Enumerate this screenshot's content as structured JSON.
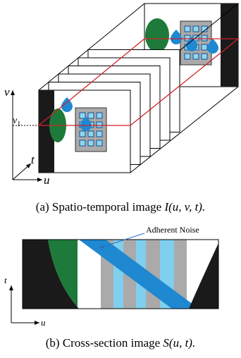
{
  "figure_a": {
    "axis_v": "v",
    "axis_v1": "v",
    "axis_v1_sub": "1",
    "axis_t": "t",
    "axis_u": "u",
    "caption_prefix": "(a) Spatio-temporal image ",
    "caption_math": "I(u, v, t)."
  },
  "figure_b": {
    "annotation": "Adherent Noise",
    "axis_t": "t",
    "axis_u": "u",
    "caption_prefix": "(b) Cross-section image ",
    "caption_math": "S(u, t)."
  }
}
